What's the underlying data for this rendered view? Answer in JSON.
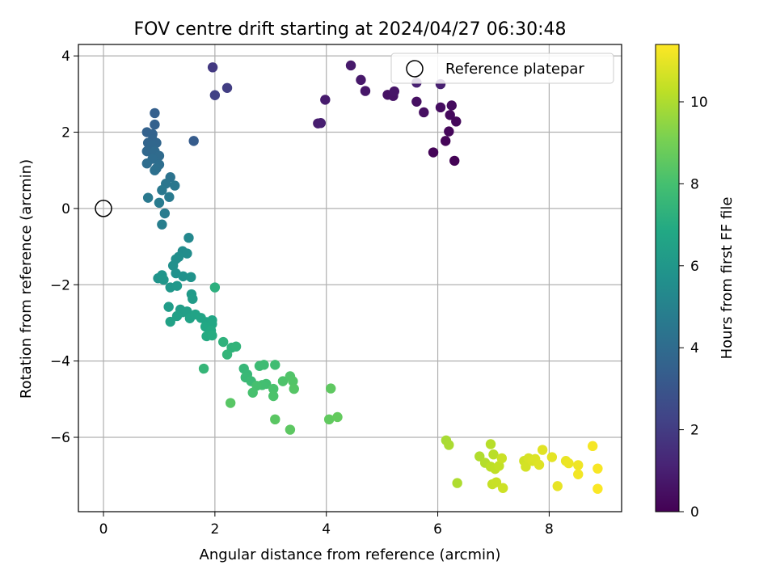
{
  "chart_data": {
    "type": "scatter",
    "title": "FOV centre drift starting at 2024/04/27 06:30:48",
    "xlabel": "Angular distance from reference (arcmin)",
    "ylabel": "Rotation from reference (arcmin)",
    "xlim": [
      -0.45,
      9.3
    ],
    "ylim": [
      -7.95,
      4.3
    ],
    "xticks": [
      0,
      2,
      4,
      6,
      8
    ],
    "yticks": [
      -6,
      -4,
      -2,
      0,
      2,
      4
    ],
    "grid": true,
    "colormap": "viridis",
    "colorbar": {
      "label": "Hours from first FF file",
      "range": [
        0,
        11.4
      ],
      "ticks": [
        0,
        2,
        4,
        6,
        8,
        10
      ]
    },
    "legend": {
      "location": "top-right",
      "entries": [
        "Reference platepar"
      ]
    },
    "reference_point": {
      "x": 0,
      "y": 0
    },
    "points": [
      [
        6.3,
        1.25,
        0.05
      ],
      [
        5.92,
        1.47,
        0.1
      ],
      [
        6.14,
        1.77,
        0.15
      ],
      [
        6.2,
        2.02,
        0.2
      ],
      [
        6.33,
        2.28,
        0.25
      ],
      [
        6.22,
        2.45,
        0.3
      ],
      [
        6.25,
        2.7,
        0.35
      ],
      [
        6.05,
        2.65,
        0.4
      ],
      [
        5.75,
        2.52,
        0.45
      ],
      [
        5.62,
        2.8,
        0.5
      ],
      [
        5.1,
        2.98,
        0.55
      ],
      [
        5.2,
        2.95,
        0.6
      ],
      [
        5.22,
        3.07,
        0.65
      ],
      [
        4.7,
        3.08,
        0.7
      ],
      [
        4.62,
        3.37,
        0.75
      ],
      [
        4.44,
        3.75,
        0.8
      ],
      [
        3.98,
        2.85,
        0.85
      ],
      [
        3.85,
        2.23,
        0.9
      ],
      [
        3.9,
        2.24,
        0.95
      ],
      [
        6.05,
        3.26,
        1.0
      ],
      [
        5.62,
        3.3,
        1.05
      ],
      [
        1.96,
        3.7,
        1.9
      ],
      [
        2.22,
        3.16,
        2.05
      ],
      [
        2.0,
        2.97,
        2.2
      ],
      [
        1.62,
        1.77,
        3.3
      ],
      [
        0.92,
        2.5,
        3.45
      ],
      [
        0.92,
        2.2,
        3.5
      ],
      [
        0.78,
        2.0,
        3.55
      ],
      [
        0.88,
        1.95,
        3.6
      ],
      [
        0.88,
        1.8,
        3.65
      ],
      [
        0.8,
        1.72,
        3.7
      ],
      [
        0.95,
        1.72,
        3.75
      ],
      [
        0.87,
        1.65,
        3.8
      ],
      [
        0.78,
        1.5,
        3.85
      ],
      [
        0.92,
        1.5,
        3.9
      ],
      [
        1.0,
        1.38,
        3.95
      ],
      [
        0.88,
        1.3,
        4.0
      ],
      [
        0.78,
        1.18,
        4.05
      ],
      [
        1.0,
        1.15,
        4.1
      ],
      [
        0.95,
        1.05,
        4.15
      ],
      [
        0.92,
        1.0,
        4.2
      ],
      [
        1.2,
        0.82,
        4.35
      ],
      [
        1.12,
        0.65,
        4.45
      ],
      [
        1.28,
        0.6,
        4.5
      ],
      [
        1.05,
        0.48,
        4.55
      ],
      [
        0.8,
        0.28,
        4.6
      ],
      [
        1.18,
        0.3,
        4.65
      ],
      [
        1.0,
        0.15,
        4.7
      ],
      [
        1.1,
        -0.13,
        4.75
      ],
      [
        1.05,
        -0.42,
        4.85
      ],
      [
        1.53,
        -0.77,
        5.3
      ],
      [
        1.42,
        -1.12,
        5.45
      ],
      [
        1.5,
        -1.18,
        5.5
      ],
      [
        1.35,
        -1.27,
        5.55
      ],
      [
        1.3,
        -1.33,
        5.6
      ],
      [
        1.25,
        -1.5,
        5.65
      ],
      [
        1.3,
        -1.7,
        5.7
      ],
      [
        1.43,
        -1.78,
        5.75
      ],
      [
        1.57,
        -1.8,
        5.8
      ],
      [
        0.98,
        -1.83,
        5.85
      ],
      [
        1.05,
        -1.75,
        5.9
      ],
      [
        1.08,
        -1.87,
        5.95
      ],
      [
        1.2,
        -2.07,
        6.0
      ],
      [
        1.32,
        -2.03,
        6.05
      ],
      [
        1.58,
        -2.25,
        6.15
      ],
      [
        1.6,
        -2.37,
        6.2
      ],
      [
        1.17,
        -2.58,
        6.25
      ],
      [
        1.38,
        -2.65,
        6.3
      ],
      [
        1.42,
        -2.72,
        6.35
      ],
      [
        1.5,
        -2.7,
        6.4
      ],
      [
        1.32,
        -2.82,
        6.45
      ],
      [
        1.2,
        -2.97,
        6.5
      ],
      [
        1.55,
        -2.88,
        6.55
      ],
      [
        1.65,
        -2.78,
        6.6
      ],
      [
        1.75,
        -2.87,
        6.65
      ],
      [
        1.85,
        -2.98,
        6.7
      ],
      [
        1.95,
        -2.93,
        6.75
      ],
      [
        1.95,
        -3.03,
        6.8
      ],
      [
        1.83,
        -3.1,
        6.85
      ],
      [
        1.93,
        -3.2,
        6.9
      ],
      [
        1.85,
        -3.35,
        6.95
      ],
      [
        1.95,
        -3.33,
        7.0
      ],
      [
        2.0,
        -2.07,
        7.2
      ],
      [
        2.15,
        -3.5,
        7.3
      ],
      [
        2.3,
        -3.65,
        7.35
      ],
      [
        2.38,
        -3.62,
        7.4
      ],
      [
        2.22,
        -3.83,
        7.45
      ],
      [
        1.8,
        -4.2,
        7.5
      ],
      [
        2.52,
        -4.2,
        7.55
      ],
      [
        2.58,
        -4.35,
        7.6
      ],
      [
        2.55,
        -4.43,
        7.65
      ],
      [
        2.65,
        -4.53,
        7.7
      ],
      [
        2.8,
        -4.13,
        7.75
      ],
      [
        2.88,
        -4.1,
        7.8
      ],
      [
        3.08,
        -4.1,
        7.85
      ],
      [
        2.92,
        -4.6,
        7.9
      ],
      [
        2.85,
        -4.63,
        7.95
      ],
      [
        2.75,
        -4.65,
        8.0
      ],
      [
        2.68,
        -4.83,
        8.05
      ],
      [
        3.05,
        -4.73,
        8.1
      ],
      [
        3.05,
        -4.92,
        8.15
      ],
      [
        3.22,
        -4.53,
        8.2
      ],
      [
        3.35,
        -4.4,
        8.25
      ],
      [
        3.4,
        -4.53,
        8.3
      ],
      [
        3.42,
        -4.73,
        8.35
      ],
      [
        2.28,
        -5.1,
        8.4
      ],
      [
        3.08,
        -5.53,
        8.45
      ],
      [
        3.35,
        -5.8,
        8.5
      ],
      [
        4.08,
        -4.72,
        8.55
      ],
      [
        4.05,
        -5.53,
        8.6
      ],
      [
        4.2,
        -5.47,
        8.65
      ],
      [
        6.15,
        -6.08,
        9.9
      ],
      [
        6.2,
        -6.2,
        9.95
      ],
      [
        6.35,
        -7.2,
        10.0
      ],
      [
        6.75,
        -6.5,
        10.05
      ],
      [
        6.85,
        -6.67,
        10.1
      ],
      [
        6.95,
        -6.18,
        10.15
      ],
      [
        7.0,
        -6.45,
        10.2
      ],
      [
        6.95,
        -6.77,
        10.25
      ],
      [
        7.03,
        -6.83,
        10.3
      ],
      [
        7.1,
        -6.75,
        10.35
      ],
      [
        6.98,
        -7.23,
        10.4
      ],
      [
        7.05,
        -7.18,
        10.45
      ],
      [
        7.15,
        -6.55,
        10.5
      ],
      [
        7.17,
        -7.33,
        10.55
      ],
      [
        7.55,
        -6.62,
        10.6
      ],
      [
        7.58,
        -6.77,
        10.65
      ],
      [
        7.63,
        -6.55,
        10.7
      ],
      [
        7.7,
        -6.62,
        10.75
      ],
      [
        7.75,
        -6.57,
        10.8
      ],
      [
        7.82,
        -6.72,
        10.85
      ],
      [
        7.88,
        -6.33,
        10.9
      ],
      [
        8.05,
        -6.52,
        10.95
      ],
      [
        8.15,
        -7.28,
        11.0
      ],
      [
        8.3,
        -6.62,
        11.05
      ],
      [
        8.35,
        -6.68,
        11.1
      ],
      [
        8.52,
        -6.73,
        11.15
      ],
      [
        8.52,
        -6.97,
        11.2
      ],
      [
        8.78,
        -6.23,
        11.25
      ],
      [
        8.87,
        -6.82,
        11.3
      ],
      [
        8.87,
        -7.35,
        11.35
      ]
    ]
  }
}
